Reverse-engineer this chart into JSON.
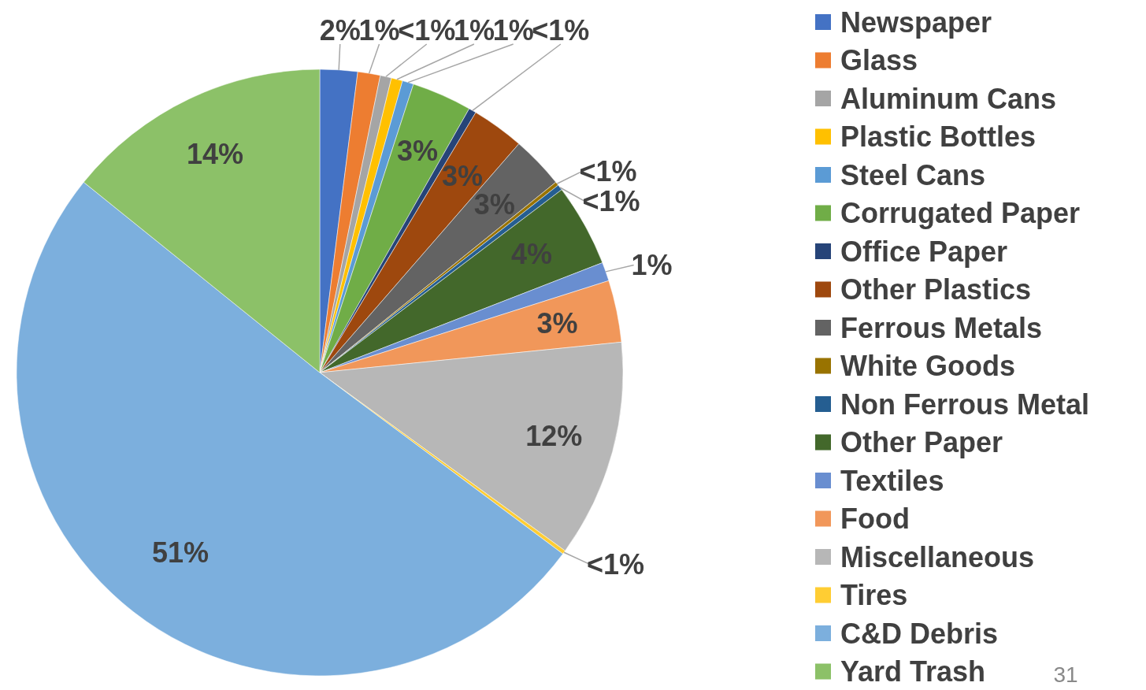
{
  "chart_data": {
    "type": "pie",
    "categories": [
      "Newspaper",
      "Glass",
      "Aluminum Cans",
      "Plastic Bottles",
      "Steel Cans",
      "Corrugated Paper",
      "Office Paper",
      "Other Plastics",
      "Ferrous Metals",
      "White Goods",
      "Non Ferrous Metal",
      "Other Paper",
      "Textiles",
      "Food",
      "Miscellaneous",
      "Tires",
      "C&D Debris",
      "Yard Trash"
    ],
    "values": [
      2.0,
      1.2,
      0.6,
      0.6,
      0.6,
      3.2,
      0.4,
      2.8,
      2.8,
      0.2,
      0.3,
      4.4,
      1.0,
      3.3,
      11.6,
      0.2,
      50.6,
      14.2
    ],
    "value_labels": [
      "2%",
      "1%",
      "<1%",
      "1%",
      "1%",
      "3%",
      "<1%",
      "3%",
      "3%",
      "<1%",
      "<1%",
      "4%",
      "1%",
      "3%",
      "12%",
      "<1%",
      "51%",
      "14%"
    ],
    "colors": [
      "#4472c4",
      "#ed7d31",
      "#a5a5a5",
      "#ffc000",
      "#5b9bd5",
      "#70ad47",
      "#264478",
      "#9e480e",
      "#636363",
      "#997300",
      "#255e91",
      "#43682b",
      "#698ed0",
      "#f1975a",
      "#b7b7b7",
      "#ffcd33",
      "#7cafdd",
      "#8cc168"
    ],
    "legend": "right",
    "annotations": [
      "31"
    ]
  }
}
